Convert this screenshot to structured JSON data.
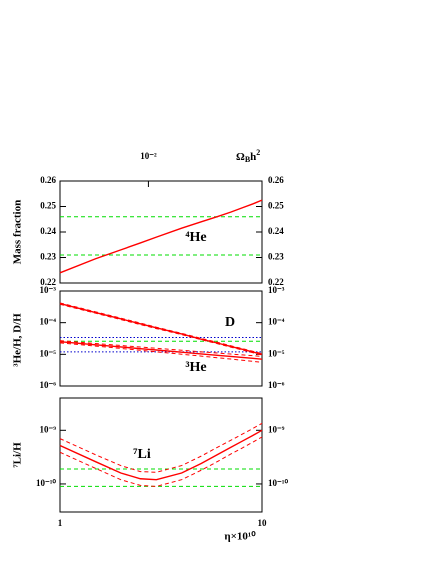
{
  "chart_data": [
    {
      "type": "line",
      "ylabel": "Mass fraction",
      "log_x": true,
      "xlim": [
        1,
        10
      ],
      "x2lim": [
        0.00365,
        0.0365
      ],
      "x2ticks": [
        {
          "value": 0.01,
          "label": "10⁻²"
        }
      ],
      "x2label": {
        "base": "Ω",
        "sub": "B",
        "tail": "h",
        "sup": "2"
      },
      "ylim": [
        0.22,
        0.26
      ],
      "yticks": [
        0.22,
        0.23,
        0.24,
        0.25,
        0.26
      ],
      "annotations": [
        "⁴He"
      ],
      "x": [
        1,
        1.5,
        2,
        2.5,
        3,
        4,
        5,
        6,
        7,
        8,
        9,
        10
      ],
      "series": [
        {
          "color": "#00dd00",
          "style": "dashed",
          "x": [
            1,
            10
          ],
          "values": [
            0.231,
            0.231
          ]
        },
        {
          "color": "#00dd00",
          "style": "dashed",
          "x": [
            1,
            10
          ],
          "values": [
            0.246,
            0.246
          ]
        },
        {
          "color": "#ff0000",
          "style": "solid",
          "values": [
            0.224,
            0.2295,
            0.233,
            0.2357,
            0.238,
            0.2415,
            0.244,
            0.246,
            0.2478,
            0.2495,
            0.251,
            0.2525
          ]
        }
      ]
    },
    {
      "type": "line",
      "ylabel": "³He/H, D/H",
      "log_x": true,
      "log_y": true,
      "xlim": [
        1,
        10
      ],
      "ylim": [
        1e-06,
        0.001
      ],
      "yticks": [
        {
          "value": 0.001,
          "label": "10⁻³"
        },
        {
          "value": 0.0001,
          "label": "10⁻⁴"
        },
        {
          "value": 1e-05,
          "label": "10⁻⁵"
        },
        {
          "value": 1e-06,
          "label": "10⁻⁶"
        }
      ],
      "annotations": [
        "D",
        "³He"
      ],
      "x": [
        1,
        1.5,
        2,
        2.5,
        3,
        4,
        5,
        6,
        7,
        8,
        9,
        10
      ],
      "series": [
        {
          "color": "#0000cc",
          "style": "dotted",
          "x": [
            1,
            10
          ],
          "values": [
            3.4e-05,
            3.4e-05
          ]
        },
        {
          "color": "#0000cc",
          "style": "dotted",
          "x": [
            1,
            10
          ],
          "values": [
            1.2e-05,
            1.2e-05
          ]
        },
        {
          "color": "#00dd00",
          "style": "dashed",
          "x": [
            1,
            10
          ],
          "values": [
            2.6e-05,
            2.6e-05
          ]
        },
        {
          "color": "#ff0000",
          "style": "solid",
          "values": [
            0.0004,
            0.000209,
            0.000132,
            9.2e-05,
            6.9e-05,
            4.4e-05,
            3e-05,
            2.28e-05,
            1.78e-05,
            1.44e-05,
            1.19e-05,
            1e-05
          ]
        },
        {
          "color": "#ff0000",
          "style": "dashed",
          "values": [
            0.00042,
            0.00022,
            0.000139,
            9.7e-05,
            7.2e-05,
            4.6e-05,
            3.2e-05,
            2.4e-05,
            1.87e-05,
            1.51e-05,
            1.25e-05,
            1.05e-05
          ]
        },
        {
          "color": "#ff0000",
          "style": "dashed",
          "values": [
            0.00038,
            0.000199,
            0.000125,
            8.7e-05,
            6.5e-05,
            4.2e-05,
            2.9e-05,
            2.17e-05,
            1.69e-05,
            1.37e-05,
            1.13e-05,
            9.5e-06
          ]
        },
        {
          "color": "#ff0000",
          "style": "solid",
          "values": [
            2.5e-05,
            2e-05,
            1.71e-05,
            1.51e-05,
            1.37e-05,
            1.17e-05,
            1.03e-05,
            9.3e-06,
            8.6e-06,
            8e-06,
            7.5e-06,
            7e-06
          ]
        },
        {
          "color": "#ff0000",
          "style": "dashed",
          "values": [
            2.7e-05,
            2.2e-05,
            1.9e-05,
            1.7e-05,
            1.55e-05,
            1.35e-05,
            1.2e-05,
            1.1e-05,
            1.02e-05,
            9.6e-06,
            9.1e-06,
            8.6e-06
          ]
        },
        {
          "color": "#ff0000",
          "style": "dashed",
          "values": [
            2.3e-05,
            1.82e-05,
            1.54e-05,
            1.34e-05,
            1.2e-05,
            1.01e-05,
            8.8e-06,
            7.8e-06,
            7.1e-06,
            6.5e-06,
            6e-06,
            5.6e-06
          ]
        }
      ]
    },
    {
      "type": "line",
      "ylabel": "⁷Li/H",
      "xlabel": "η×10¹⁰",
      "log_x": true,
      "log_y": true,
      "xlim": [
        1,
        10
      ],
      "xticks": [
        1,
        10
      ],
      "ylim": [
        3e-11,
        4e-09
      ],
      "yticks": [
        {
          "value": 1e-09,
          "label": "10⁻⁹"
        },
        {
          "value": 1e-10,
          "label": "10⁻¹⁰"
        }
      ],
      "annotations": [
        "⁷Li"
      ],
      "x": [
        1,
        1.5,
        2,
        2.5,
        3,
        4,
        5,
        6,
        7,
        8,
        9,
        10
      ],
      "series": [
        {
          "color": "#00dd00",
          "style": "dashed",
          "x": [
            1,
            10
          ],
          "values": [
            1.9e-10,
            1.9e-10
          ]
        },
        {
          "color": "#00dd00",
          "style": "dashed",
          "x": [
            1,
            10
          ],
          "values": [
            9e-11,
            9e-11
          ]
        },
        {
          "color": "#ff0000",
          "style": "solid",
          "values": [
            5.2e-10,
            2.6e-10,
            1.6e-10,
            1.25e-10,
            1.2e-10,
            1.6e-10,
            2.4e-10,
            3.5e-10,
            4.8e-10,
            6.3e-10,
            8e-10,
            1e-09
          ]
        },
        {
          "color": "#ff0000",
          "style": "dashed",
          "values": [
            7e-10,
            3.5e-10,
            2.2e-10,
            1.7e-10,
            1.65e-10,
            2.2e-10,
            3.3e-10,
            4.8e-10,
            6.5e-10,
            8.5e-10,
            1.08e-09,
            1.35e-09
          ]
        },
        {
          "color": "#ff0000",
          "style": "dashed",
          "values": [
            3.9e-10,
            1.95e-10,
            1.2e-10,
            9.4e-11,
            9e-11,
            1.2e-10,
            1.8e-10,
            2.6e-10,
            3.6e-10,
            4.7e-10,
            6e-10,
            7.5e-10
          ]
        }
      ]
    }
  ]
}
